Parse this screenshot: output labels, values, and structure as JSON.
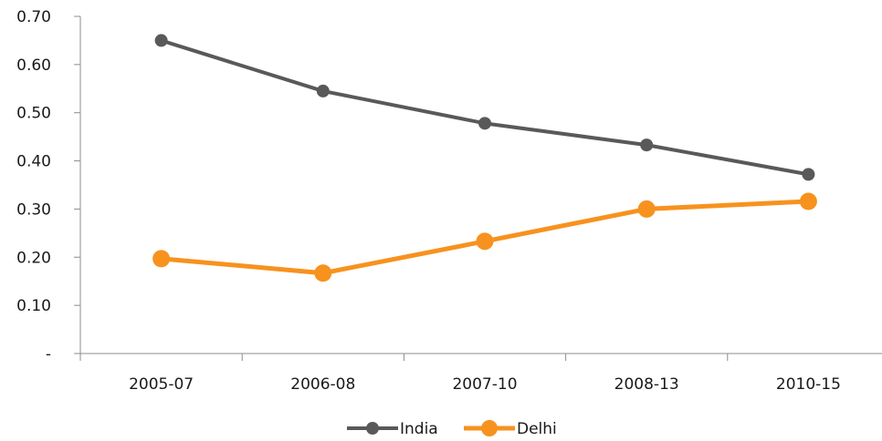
{
  "chart_data": {
    "type": "line",
    "categories": [
      "2005-07",
      "2006-08",
      "2007-10",
      "2008-13",
      "2010-15"
    ],
    "series": [
      {
        "name": "India",
        "values": [
          0.65,
          0.545,
          0.478,
          0.433,
          0.372
        ],
        "color": "#595959"
      },
      {
        "name": "Delhi",
        "values": [
          0.197,
          0.167,
          0.233,
          0.3,
          0.316
        ],
        "color": "#f7921e"
      }
    ],
    "ylim": [
      0,
      0.7
    ],
    "y_ticks": [
      "-",
      "0.10",
      "0.20",
      "0.30",
      "0.40",
      "0.50",
      "0.60",
      "0.70"
    ],
    "legend_position": "bottom-center",
    "grid": false,
    "title": "",
    "xlabel": "",
    "ylabel": ""
  }
}
